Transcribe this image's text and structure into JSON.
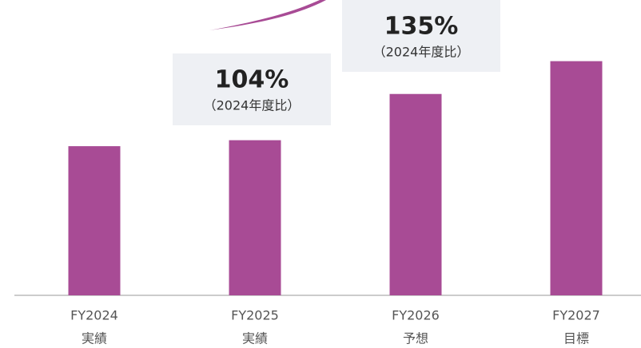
{
  "chart_data": {
    "type": "bar",
    "categories": [
      "FY2024",
      "FY2025",
      "FY2026",
      "FY2027"
    ],
    "category_notes": [
      "実績",
      "実績",
      "予想",
      "目標"
    ],
    "values": [
      100,
      104,
      135,
      157
    ],
    "color": "#a84b95",
    "ylim": [
      0,
      198
    ],
    "annotations": [
      {
        "text": "104%",
        "note": "（2024年度比）"
      },
      {
        "text": "135%",
        "note": "（2024年度比）"
      }
    ]
  }
}
